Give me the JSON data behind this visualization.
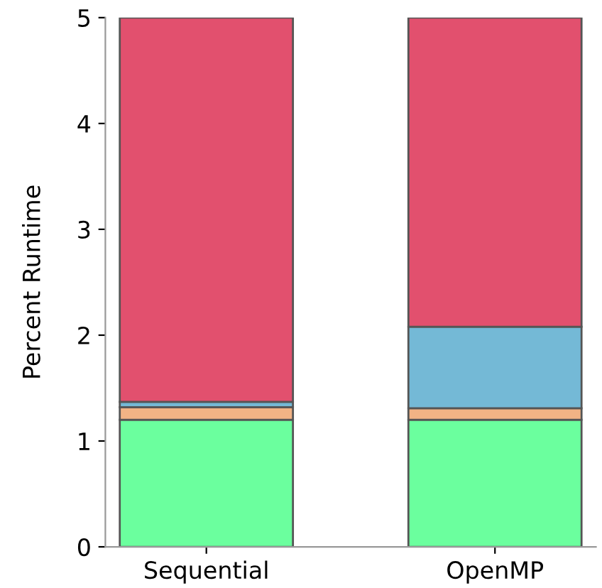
{
  "chart_data": {
    "type": "bar",
    "stacked": true,
    "ylabel": "Percent Runtime",
    "categories": [
      "Sequential",
      "OpenMP"
    ],
    "series": [
      {
        "color": "#6bff9e",
        "values": [
          1.2,
          1.2
        ]
      },
      {
        "color": "#f2b385",
        "values": [
          0.12,
          0.11
        ]
      },
      {
        "color": "#74b9d6",
        "values": [
          0.05,
          0.77
        ]
      },
      {
        "color": "#e2506e",
        "values": [
          3.63,
          2.92
        ]
      }
    ],
    "ylim": [
      0,
      5
    ],
    "yticks": [
      0,
      1,
      2,
      3,
      4,
      5
    ],
    "grid": false,
    "legend": false
  }
}
